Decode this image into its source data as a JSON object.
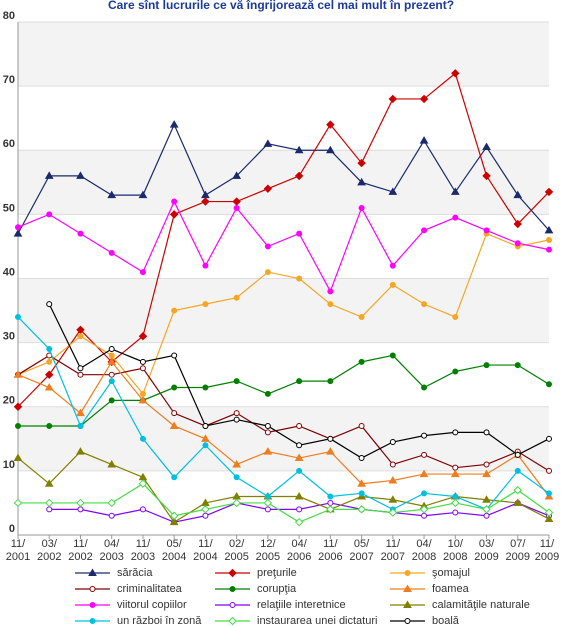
{
  "chart_data": {
    "type": "line",
    "title": "Care sînt lucrurile ce vă îngrijorează cel mai mult în prezent?",
    "categories": [
      "11/ 2001",
      "03/ 2002",
      "11/ 2002",
      "04/ 2003",
      "11/ 2003",
      "05/ 2004",
      "11/ 2004",
      "02/ 2005",
      "12/ 2005",
      "04/ 2006",
      "11/ 2006",
      "05/ 2007",
      "11/ 2007",
      "04/ 2008",
      "10/ 2008",
      "03/ 2009",
      "07/ 2009",
      "11/ 2009"
    ],
    "ylim": [
      0,
      80
    ],
    "yticks": [
      0,
      10,
      20,
      30,
      40,
      50,
      60,
      70,
      80
    ],
    "grid": true,
    "bands": true,
    "legend": "bottom",
    "series": [
      {
        "name": "sărăcia",
        "color": "#1a2a6c",
        "marker": "triangle",
        "values": [
          47,
          56,
          56,
          53,
          53,
          64,
          53,
          56,
          61,
          60,
          60,
          55,
          53.5,
          61.5,
          53.5,
          60.5,
          53,
          47.5
        ]
      },
      {
        "name": "preţurile",
        "color": "#cc0000",
        "marker": "diamond",
        "values": [
          20,
          25,
          32,
          27,
          31,
          50,
          52,
          52,
          54,
          56,
          64,
          58,
          68,
          68,
          72,
          56,
          48.5,
          53.5
        ]
      },
      {
        "name": "şomajul",
        "color": "#f5a623",
        "marker": "circle",
        "values": [
          25,
          27,
          31,
          28,
          22,
          35,
          36,
          37,
          41,
          40,
          36,
          34,
          39,
          36,
          34,
          47,
          45,
          46
        ]
      },
      {
        "name": "criminalitatea",
        "color": "#800000",
        "marker": "open-circle",
        "values": [
          25,
          28,
          25,
          25,
          26,
          19,
          17,
          19,
          16,
          17,
          15,
          17,
          11,
          12.5,
          10.5,
          11,
          13,
          10
        ]
      },
      {
        "name": "corupţia",
        "color": "#008000",
        "marker": "circle",
        "values": [
          17,
          17,
          17,
          21,
          21,
          23,
          23,
          24,
          22,
          24,
          24,
          27,
          28,
          23,
          25.5,
          26.5,
          26.5,
          23.5
        ]
      },
      {
        "name": "foamea",
        "color": "#ef7d1f",
        "marker": "triangle",
        "values": [
          25,
          23,
          19,
          27,
          21,
          17,
          15,
          11,
          13,
          12,
          13,
          8,
          8.5,
          9.5,
          9.5,
          9.5,
          12.5,
          6
        ]
      },
      {
        "name": "viitorul copiilor",
        "color": "#ff00ff",
        "marker": "circle",
        "values": [
          48,
          50,
          47,
          44,
          41,
          52,
          42,
          51,
          45,
          47,
          38,
          51,
          42,
          47.5,
          49.5,
          47.5,
          45.5,
          44.5
        ]
      },
      {
        "name": "relaţiile interetnice",
        "color": "#7f00ff",
        "marker": "open-circle",
        "values": [
          null,
          4,
          4,
          3,
          4,
          2,
          3,
          5,
          4,
          4,
          5,
          4,
          3.5,
          3,
          3.5,
          3,
          5,
          3
        ]
      },
      {
        "name": "calamităţile naturale",
        "color": "#808000",
        "marker": "triangle",
        "values": [
          12,
          8,
          13,
          11,
          9,
          2,
          5,
          6,
          6,
          6,
          4,
          6,
          5.5,
          4.5,
          6,
          5.5,
          5,
          2.5
        ]
      },
      {
        "name": "un război în zonă",
        "color": "#00c0e0",
        "marker": "circle",
        "values": [
          34,
          29,
          17,
          24,
          15,
          9,
          14,
          9,
          6,
          10,
          6,
          6.5,
          4,
          6.5,
          6,
          4,
          10,
          6.5
        ]
      },
      {
        "name": "instaurarea unei dictaturi",
        "color": "#44dd44",
        "marker": "open-diamond",
        "values": [
          5,
          5,
          5,
          5,
          8,
          3,
          4,
          5,
          5,
          2,
          4,
          4,
          3.5,
          4,
          5,
          4,
          7,
          3.5
        ]
      },
      {
        "name": "boală",
        "color": "#000000",
        "marker": "open-circle",
        "values": [
          null,
          36,
          26,
          29,
          27,
          28,
          17,
          18,
          17,
          14,
          15,
          12,
          14.5,
          15.5,
          16,
          16,
          12.5,
          15
        ]
      }
    ]
  }
}
